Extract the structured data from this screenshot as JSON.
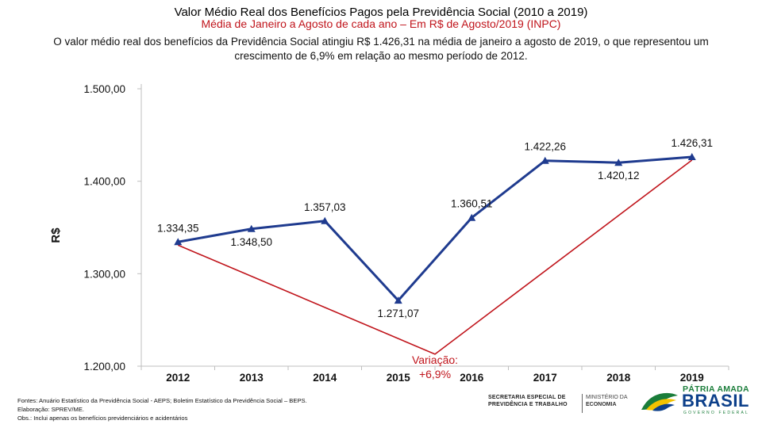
{
  "header": {
    "title": "Valor Médio Real dos Benefícios Pagos pela Previdência Social (2010 a 2019)",
    "subtitle": "Média de Janeiro a Agosto de cada ano – Em R$ de Agosto/2019 (INPC)",
    "summary": "O valor médio real dos benefícios da Previdência Social atingiu R$ 1.426,31 na média de janeiro a agosto de 2019, o que representou um crescimento de 6,9% em relação ao mesmo período de 2012."
  },
  "chart_data": {
    "type": "line",
    "categories": [
      "2012",
      "2013",
      "2014",
      "2015",
      "2016",
      "2017",
      "2018",
      "2019"
    ],
    "values": [
      1334.35,
      1348.5,
      1357.03,
      1271.07,
      1360.51,
      1422.26,
      1420.12,
      1426.31
    ],
    "value_labels": [
      "1.334,35",
      "1.348,50",
      "1.357,03",
      "1.271,07",
      "1.360,51",
      "1.422,26",
      "1.420,12",
      "1.426,31"
    ],
    "label_positions": [
      "above",
      "below",
      "above",
      "below",
      "above",
      "above",
      "below",
      "above"
    ],
    "ylabel": "R$",
    "ylim": [
      1200,
      1500
    ],
    "yticks": [
      1200,
      1300,
      1400,
      1500
    ],
    "ytick_labels": [
      "1.200,00",
      "1.300,00",
      "1.400,00",
      "1.500,00"
    ],
    "series_color": "#1f3b8f",
    "annotation": {
      "lines": [
        "Variação:",
        "+6,9%"
      ],
      "from_category": "2012",
      "to_category": "2019",
      "via": {
        "category": "2015.5",
        "value": 1213
      },
      "color": "#c0141b"
    }
  },
  "footer": {
    "line1": "Fontes: Anuário Estatístico da Previdência Social - AEPS; Boletim Estatístico da Previdência Social – BEPS.",
    "line2": "Elaboração: SPREV/ME.",
    "line3": "Obs.: Inclui apenas os benefícios previdenciários e acidentários"
  },
  "logos": {
    "secretaria_line1": "SECRETARIA ESPECIAL DE",
    "secretaria_line2": "PREVIDÊNCIA E TRABALHO",
    "ministerio_line1": "MINISTÉRIO DA",
    "ministerio_line2": "ECONOMIA",
    "brasil_slogan": "PÁTRIA AMADA",
    "brasil_name": "BRASIL",
    "brasil_gov": "GOVERNO FEDERAL",
    "flag_green": "#1a7d3a",
    "flag_yellow": "#f2c200",
    "flag_blue": "#0c3f8a"
  }
}
